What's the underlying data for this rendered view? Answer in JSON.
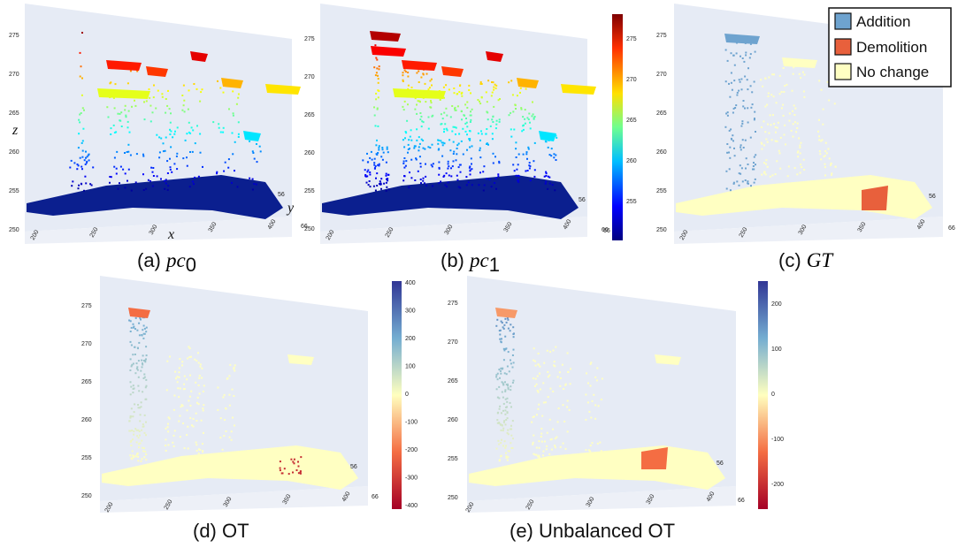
{
  "panels": [
    {
      "caption_prefix": "(a)",
      "caption_math": "pc",
      "caption_sub": "0",
      "colorscheme": "height"
    },
    {
      "caption_prefix": "(b)",
      "caption_math": "pc",
      "caption_sub": "1",
      "colorscheme": "height"
    },
    {
      "caption_prefix": "(c)",
      "caption_math": "GT",
      "caption_sub": "",
      "colorscheme": "labels"
    },
    {
      "caption_prefix": "(d)",
      "caption_text": "OT",
      "colorscheme": "diverging"
    },
    {
      "caption_prefix": "(e)",
      "caption_text": "Unbalanced OT",
      "colorscheme": "diverging"
    }
  ],
  "z_ticks": [
    "275",
    "270",
    "265",
    "260",
    "255",
    "250"
  ],
  "x_ticks": [
    "200",
    "250",
    "300",
    "350",
    "400"
  ],
  "y_ticks": [
    "56",
    "66"
  ],
  "axis_labels": {
    "x": "x",
    "y": "y",
    "z": "z"
  },
  "height_colorbar": {
    "ticks": [
      "275",
      "270",
      "265",
      "260",
      "255"
    ],
    "min_label": "66"
  },
  "ot_colorbar": {
    "ticks": [
      "400",
      "300",
      "200",
      "100",
      "0",
      "-100",
      "-200",
      "-300",
      "-400"
    ]
  },
  "uot_colorbar": {
    "ticks": [
      "200",
      "100",
      "0",
      "-100",
      "-200"
    ]
  },
  "legend": [
    {
      "label": "Addition",
      "color": "#6ea3cf"
    },
    {
      "label": "Demolition",
      "color": "#e8603c"
    },
    {
      "label": "No change",
      "color": "#ffffc2"
    }
  ],
  "colors": {
    "pane": "#e6ebf5",
    "no_change": "#ffffc2",
    "ground_blue": "#0b1f8f"
  }
}
